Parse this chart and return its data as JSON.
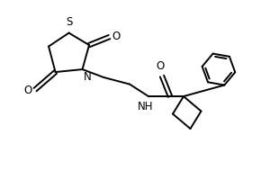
{
  "bg_color": "#ffffff",
  "line_color": "#000000",
  "line_width": 1.4,
  "font_size": 8.5,
  "fig_width": 3.0,
  "fig_height": 2.0,
  "dpi": 100,
  "xlim": [
    0,
    10
  ],
  "ylim": [
    0,
    6.67
  ]
}
